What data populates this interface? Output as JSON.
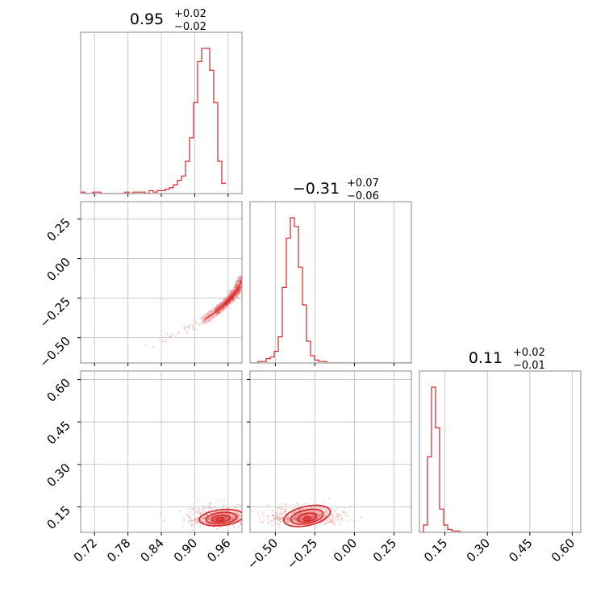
{
  "chart_data": {
    "type": "corner",
    "colors": {
      "line": "#d62728",
      "fill": "#e88c8c",
      "grid": "#c8c8c8",
      "frame": "#8a8a8a"
    },
    "grid": true,
    "parameters": [
      {
        "range": [
          0.695,
          0.985
        ],
        "ticks": [
          0.72,
          0.78,
          0.84,
          0.9,
          0.96
        ],
        "tick_labels": [
          "0.72",
          "0.78",
          "0.84",
          "0.90",
          "0.96"
        ],
        "title": {
          "value": "0.95",
          "plus": "+0.02",
          "minus": "−0.02"
        }
      },
      {
        "range": [
          -0.66,
          0.36
        ],
        "ticks": [
          -0.5,
          -0.25,
          0.0,
          0.25
        ],
        "tick_labels": [
          "−0.50",
          "−0.25",
          "0.00",
          "0.25"
        ],
        "title": {
          "value": "−0.31",
          "plus": "+0.07",
          "minus": "−0.06"
        }
      },
      {
        "range": [
          0.06,
          0.63
        ],
        "ticks": [
          0.15,
          0.3,
          0.45,
          0.6
        ],
        "tick_labels": [
          "0.15",
          "0.30",
          "0.45",
          "0.60"
        ],
        "title": {
          "value": "0.11",
          "plus": "+0.02",
          "minus": "−0.01"
        }
      }
    ],
    "histograms": [
      {
        "param": 0,
        "bin_edges_start": 0.695,
        "bin_width": 0.00725,
        "counts": [
          1,
          0,
          0,
          1,
          1,
          0,
          0,
          0,
          0,
          0,
          0,
          1,
          0,
          1,
          1,
          1,
          0,
          2,
          1,
          2,
          2,
          3,
          4,
          6,
          9,
          12,
          22,
          38,
          62,
          90,
          99,
          99,
          84,
          62,
          22,
          7
        ]
      },
      {
        "param": 1,
        "bin_edges_start": -0.66,
        "bin_width": 0.0255,
        "counts": [
          0,
          0,
          1,
          1,
          3,
          4,
          8,
          18,
          52,
          86,
          100,
          94,
          66,
          40,
          15,
          5,
          2,
          1,
          1,
          0,
          0,
          0,
          0,
          0,
          0,
          0,
          0,
          0,
          0,
          0,
          0,
          0,
          0,
          0,
          0,
          0,
          0,
          0,
          0,
          0
        ]
      },
      {
        "param": 2,
        "bin_edges_start": 0.06,
        "bin_width": 0.01425,
        "counts": [
          0,
          5,
          52,
          100,
          72,
          16,
          5,
          2,
          1,
          1,
          0,
          0,
          0,
          0,
          0,
          0,
          0,
          0,
          0,
          0,
          0,
          0,
          0,
          0,
          0,
          0,
          0,
          0,
          0,
          0,
          0,
          0,
          0,
          0,
          0,
          0,
          0,
          0,
          0,
          0
        ]
      }
    ],
    "scatter_pairs": [
      {
        "x_param": 0,
        "y_param": 1,
        "ridge": [
          [
            0.81,
            -0.56
          ],
          [
            0.85,
            -0.5
          ],
          [
            0.89,
            -0.44
          ],
          [
            0.92,
            -0.38
          ],
          [
            0.94,
            -0.33
          ],
          [
            0.955,
            -0.285
          ],
          [
            0.968,
            -0.24
          ],
          [
            0.978,
            -0.19
          ],
          [
            0.985,
            -0.13
          ]
        ],
        "contours": [
          {
            "x": [
              0.905,
              0.985
            ],
            "y": [
              -0.42,
              -0.2
            ]
          },
          {
            "x": [
              0.925,
              0.982
            ],
            "y": [
              -0.38,
              -0.24
            ]
          },
          {
            "x": [
              0.945,
              0.975
            ],
            "y": [
              -0.34,
              -0.27
            ]
          }
        ]
      },
      {
        "x_param": 0,
        "y_param": 2,
        "center": [
          0.945,
          0.11
        ],
        "contours": [
          {
            "cx": 0.948,
            "cy": 0.112,
            "rx": 0.04,
            "ry": 0.028
          },
          {
            "cx": 0.948,
            "cy": 0.11,
            "rx": 0.028,
            "ry": 0.02
          },
          {
            "cx": 0.947,
            "cy": 0.108,
            "rx": 0.017,
            "ry": 0.012
          },
          {
            "cx": 0.946,
            "cy": 0.106,
            "rx": 0.007,
            "ry": 0.006
          }
        ]
      },
      {
        "x_param": 1,
        "y_param": 2,
        "center": [
          -0.31,
          0.112
        ],
        "contours": [
          {
            "cx": -0.3,
            "cy": 0.118,
            "rx": 0.15,
            "ry": 0.034
          },
          {
            "cx": -0.3,
            "cy": 0.115,
            "rx": 0.105,
            "ry": 0.024
          },
          {
            "cx": -0.3,
            "cy": 0.112,
            "rx": 0.062,
            "ry": 0.015
          },
          {
            "cx": -0.3,
            "cy": 0.108,
            "rx": 0.022,
            "ry": 0.007
          }
        ]
      }
    ]
  }
}
